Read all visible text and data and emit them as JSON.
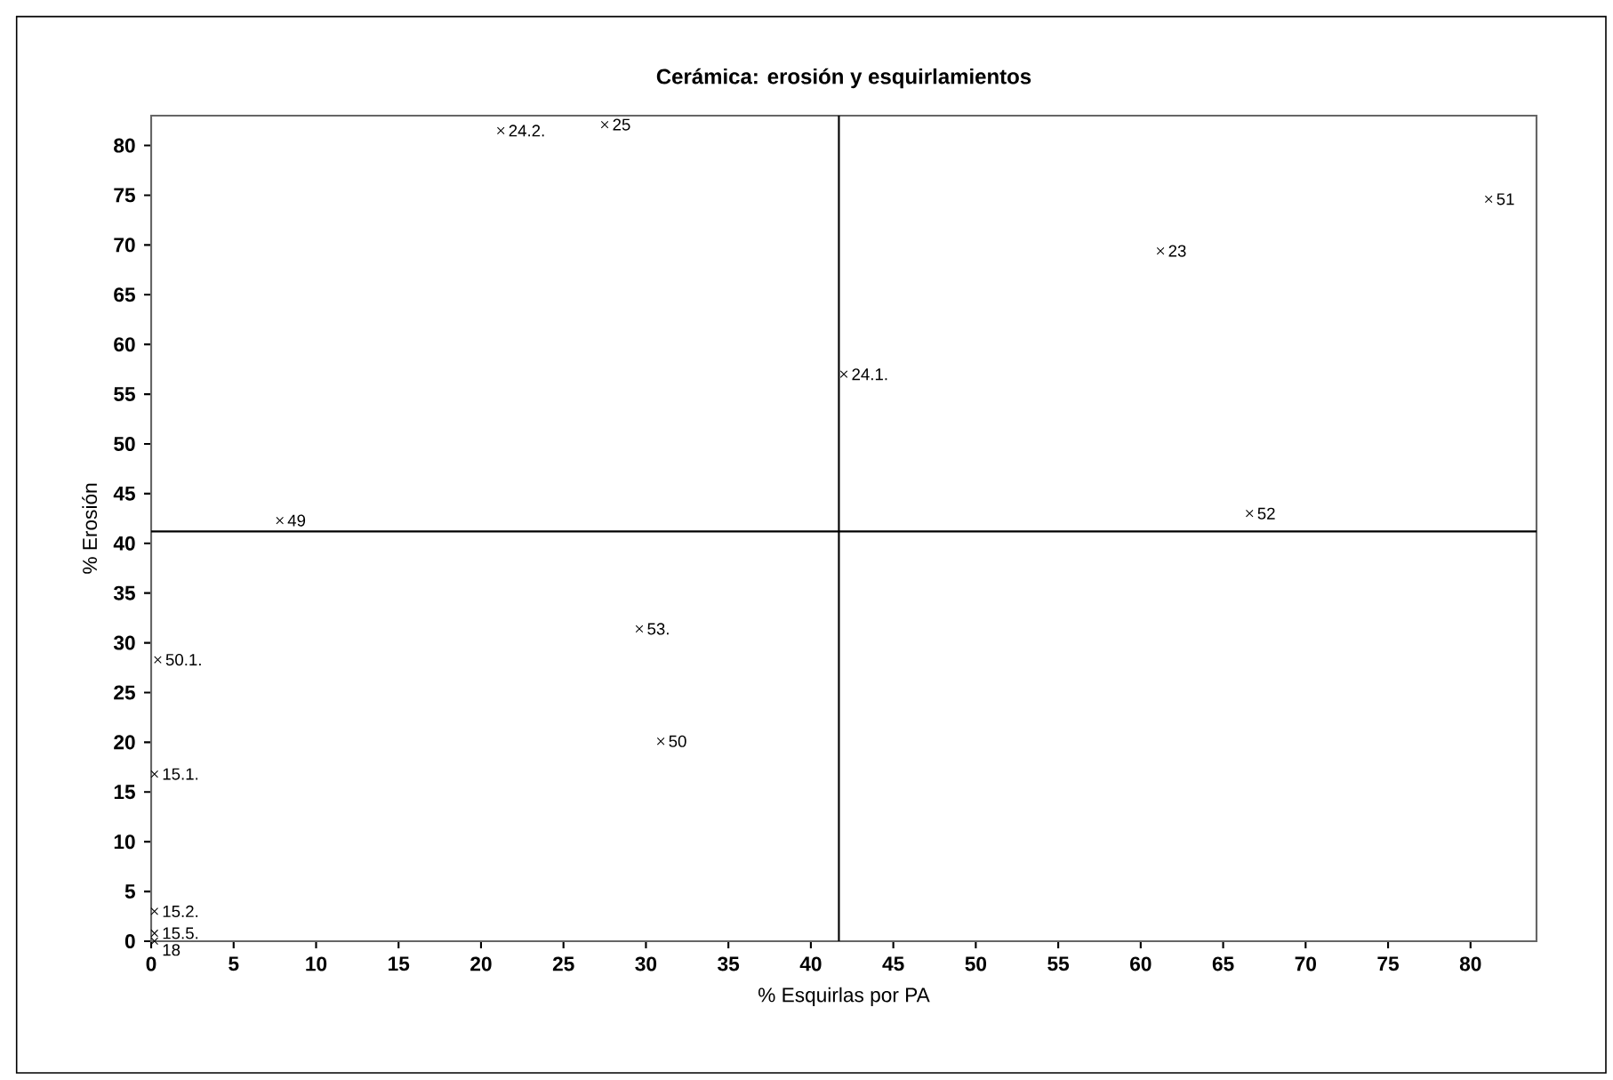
{
  "chart_data": {
    "type": "scatter",
    "title": "Cerámica: erosión y esquirlamientos",
    "xlabel": "% Esquirlas por PA",
    "ylabel": "% Erosión",
    "x": [
      21.2,
      27.5,
      7.8,
      42.0,
      81.1,
      61.2,
      66.6,
      29.6,
      30.9,
      0.4,
      0.2,
      0.2,
      0.2,
      0.2
    ],
    "values": [
      81.5,
      82.1,
      42.3,
      57.0,
      74.6,
      69.4,
      43.0,
      31.4,
      20.1,
      28.3,
      16.8,
      3.0,
      0.8,
      0
    ],
    "annotations": [
      {
        "text": "24.2.",
        "x": 21.2,
        "y": 81.5
      },
      {
        "text": "25",
        "x": 27.5,
        "y": 82.1
      },
      {
        "text": "49",
        "x": 7.8,
        "y": 42.3
      },
      {
        "text": "24.1.",
        "x": 42.0,
        "y": 57.0
      },
      {
        "text": "51",
        "x": 81.1,
        "y": 74.6
      },
      {
        "text": "23",
        "x": 61.2,
        "y": 69.4
      },
      {
        "text": "52",
        "x": 66.6,
        "y": 43.0
      },
      {
        "text": "53.",
        "x": 29.6,
        "y": 31.4
      },
      {
        "text": "50",
        "x": 30.9,
        "y": 20.1
      },
      {
        "text": "50.1.",
        "x": 0.4,
        "y": 28.3
      },
      {
        "text": "15.1.",
        "x": 0.2,
        "y": 16.8
      },
      {
        "text": "15.2.",
        "x": 0.2,
        "y": 3.0
      },
      {
        "text": "15.5.",
        "x": 0.2,
        "y": 0.8
      },
      {
        "text": "18",
        "x": 0.2,
        "y": 0
      }
    ],
    "color": "#000000",
    "marker": "cross",
    "xlim": [
      0,
      84
    ],
    "xticks": [
      0,
      5,
      10,
      15,
      20,
      25,
      30,
      35,
      40,
      45,
      50,
      55,
      60,
      65,
      70,
      75,
      80
    ],
    "ylim": [
      0,
      83
    ],
    "yticks": [
      0,
      5,
      10,
      15,
      20,
      25,
      30,
      35,
      40,
      45,
      50,
      55,
      60,
      65,
      70,
      75,
      80
    ],
    "ref_lines": [
      {
        "axis": "x",
        "value": 41.7,
        "color": "#000000"
      },
      {
        "axis": "y",
        "value": 41.2,
        "color": "#000000"
      }
    ]
  }
}
